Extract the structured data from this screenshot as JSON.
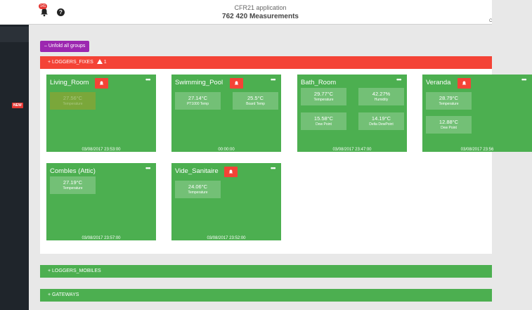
{
  "header": {
    "notification_count": "141",
    "title": "CFR21 application",
    "subtitle": "762 420 Measurements",
    "corner_text": "C"
  },
  "sidebar": {
    "new_badge": "NEW"
  },
  "toolbar": {
    "unfold_label": "– Unfold all groups"
  },
  "groups": [
    {
      "label": "+ LOGGERS_FIXES",
      "alert_count": "1",
      "color": "#f44336"
    },
    {
      "label": "+ LOGGERS_MOBILES",
      "color": "#4caf50"
    },
    {
      "label": "+ GATEWAYS",
      "color": "#4caf50"
    }
  ],
  "cards": [
    {
      "name": "Living_Room",
      "alarm": true,
      "time": "03/08/2017 23:53:00",
      "measures": [
        {
          "value": "27.56°C",
          "label": "Temperature",
          "faded": true
        }
      ]
    },
    {
      "name": "Swimming_Pool",
      "alarm": true,
      "time": "00:00:00",
      "measures": [
        {
          "value": "27.14°C",
          "label": "PT1000 Temp"
        },
        {
          "value": "25.5°C",
          "label": "Board Temp"
        }
      ]
    },
    {
      "name": "Bath_Room",
      "alarm": false,
      "time": "03/08/2017 23:47:00",
      "measures": [
        {
          "value": "29.77°C",
          "label": "Temperature"
        },
        {
          "value": "42.27%",
          "label": "Humidity"
        },
        {
          "value": "15.58°C",
          "label": "Dew Point"
        },
        {
          "value": "14.19°C",
          "label": "Delta DewPoint"
        }
      ]
    },
    {
      "name": "Veranda",
      "alarm": true,
      "time": "03/08/2017 23:56",
      "measures": [
        {
          "value": "28.79°C",
          "label": "Temperature"
        },
        {
          "value": "12.88°C",
          "label": "Dew Point"
        }
      ]
    },
    {
      "name": "Combles (Attic)",
      "alarm": false,
      "time": "03/08/2017 23:57:00",
      "measures": [
        {
          "value": "27.19°C",
          "label": "Temperature"
        }
      ]
    },
    {
      "name": "Vide_Sanitaire",
      "alarm": true,
      "time": "03/08/2017 23:52:00",
      "measures": [
        {
          "value": "24.06°C",
          "label": "Temperature"
        }
      ]
    }
  ],
  "colors": {
    "card_green": "#4caf50",
    "alarm_red": "#f44336",
    "button_purple": "#9c27b0",
    "sidebar_dark": "#1f252b"
  },
  "icons": {
    "notification": "bell-icon",
    "help": "question-icon",
    "alarm": "bell-icon",
    "menu": "more-icon"
  }
}
